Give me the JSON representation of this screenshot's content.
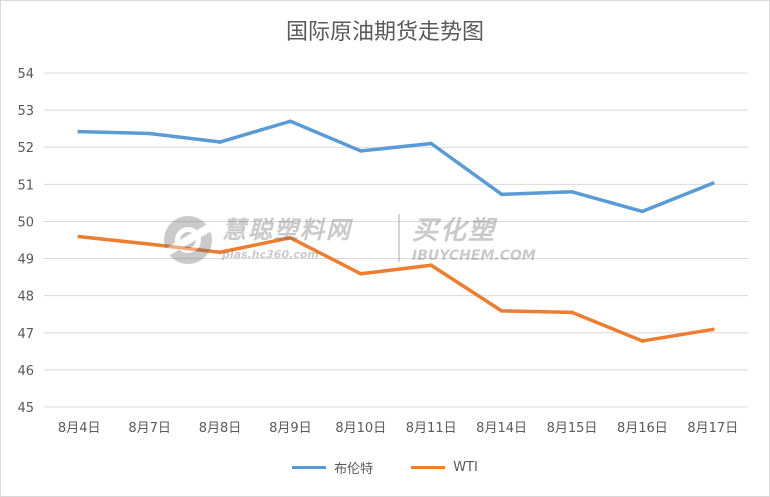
{
  "chart_data": {
    "type": "line",
    "title": "国际原油期货走势图",
    "categories": [
      "8月4日",
      "8月7日",
      "8月8日",
      "8月9日",
      "8月10日",
      "8月11日",
      "8月14日",
      "8月15日",
      "8月16日",
      "8月17日"
    ],
    "series": [
      {
        "name": "布伦特",
        "color": "#5b9bd5",
        "values": [
          52.42,
          52.37,
          52.14,
          52.7,
          51.9,
          52.1,
          50.73,
          50.8,
          50.27,
          51.03
        ]
      },
      {
        "name": "WTI",
        "color": "#ed7d31",
        "values": [
          49.59,
          49.39,
          49.17,
          49.56,
          48.59,
          48.82,
          47.59,
          47.55,
          46.78,
          47.09
        ]
      }
    ],
    "ylim": [
      45,
      54
    ],
    "yticks": [
      "45",
      "46",
      "47",
      "48",
      "49",
      "50",
      "51",
      "52",
      "53",
      "54"
    ],
    "grid": true,
    "legend_position": "bottom"
  },
  "watermark": {
    "brand_cn": "慧聪塑料网",
    "brand_url": "plas.hc360.com",
    "brand2_cn": "买化塑",
    "brand2_url": "IBUYCHEM.COM"
  }
}
